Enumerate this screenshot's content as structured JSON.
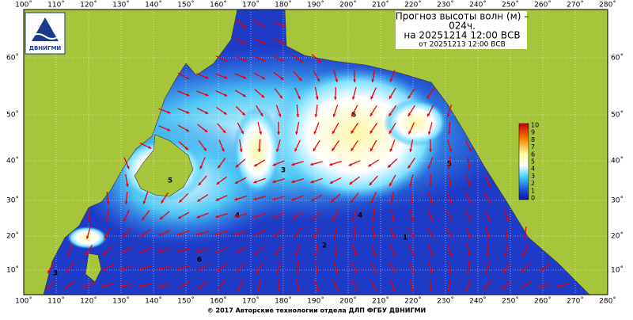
{
  "header": {
    "title_lines": [
      "Прогноз высоты волн (м) –",
      "024ч.",
      "на 20251214 12:00 ВСВ"
    ],
    "issued": "от 20251213 12:00 ВСВ"
  },
  "logo": {
    "text": "ДВНИГМИ"
  },
  "map": {
    "longitude_labels": [
      "100˚",
      "110˚",
      "120˚",
      "130˚",
      "140˚",
      "150˚",
      "160˚",
      "170˚",
      "180˚",
      "190˚",
      "200˚",
      "210˚",
      "220˚",
      "230˚",
      "240˚",
      "250˚",
      "260˚",
      "270˚",
      "280˚"
    ],
    "latitude_labels": [
      "60˚",
      "50˚",
      "40˚",
      "30˚",
      "20˚",
      "10˚"
    ],
    "contour_labels": [
      "6",
      "5",
      "4",
      "3",
      "2",
      "1"
    ]
  },
  "legend": {
    "labels": [
      "10",
      "9",
      "8",
      "7",
      "6",
      "5",
      "4",
      "3",
      "2",
      "1",
      "0"
    ]
  },
  "footer": {
    "text": "© 2017 Авторские технологии отдела ДЛП ФГБУ ДВНИГМИ"
  }
}
